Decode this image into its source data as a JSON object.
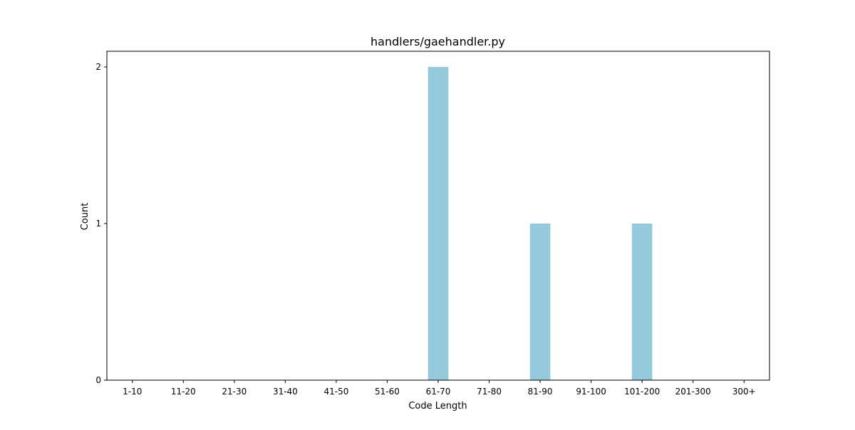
{
  "chart_data": {
    "type": "bar",
    "title": "handlers/gaehandler.py",
    "xlabel": "Code Length",
    "ylabel": "Count",
    "categories": [
      "1-10",
      "11-20",
      "21-30",
      "31-40",
      "41-50",
      "51-60",
      "61-70",
      "71-80",
      "81-90",
      "91-100",
      "101-200",
      "201-300",
      "300+"
    ],
    "values": [
      0,
      0,
      0,
      0,
      0,
      0,
      2,
      0,
      1,
      0,
      1,
      0,
      0
    ],
    "ylim": [
      0,
      2.1
    ],
    "yticks": [
      "0",
      "1",
      "2"
    ],
    "grid": false,
    "legend": "none",
    "bar_color": "#96c9dc",
    "axis_color": "#000000"
  }
}
